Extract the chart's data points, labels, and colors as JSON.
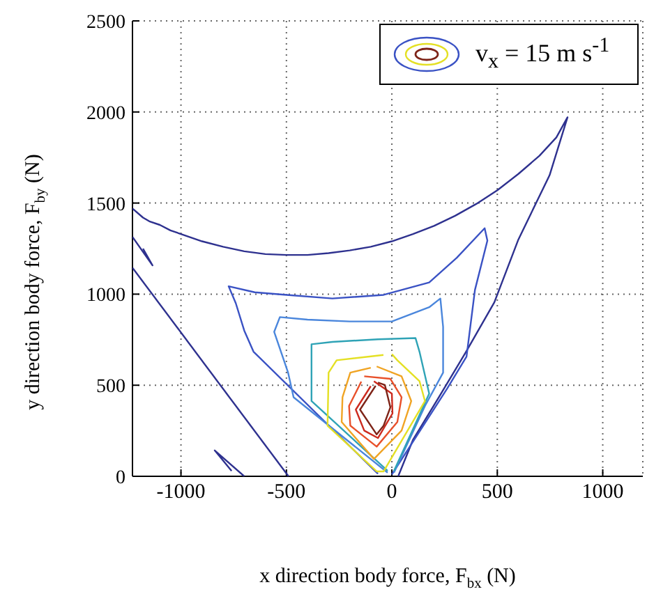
{
  "chart_data": {
    "type": "line",
    "xlabel": "x direction body force, F$_{bx}$ (N)",
    "ylabel": "y direction body force, F$_{by}$ (N)",
    "annotations": [
      "v$_{x}$ = 15 m s$^{-1}$"
    ],
    "xlim": [
      -1230,
      1190
    ],
    "ylim": [
      0,
      2500
    ],
    "xticks": [
      -1000,
      -500,
      0,
      500,
      1000
    ],
    "yticks": [
      0,
      500,
      1000,
      1500,
      2000,
      2500
    ],
    "grid": true,
    "marker": "none",
    "series": [
      {
        "color": "#2e318f",
        "x": [
          -1230,
          -1180,
          -1150,
          -1100,
          -1050,
          -1000,
          -900,
          -800,
          -700,
          -600,
          -500,
          -400,
          -300,
          -200,
          -100,
          0,
          100,
          200,
          300,
          400,
          500,
          600,
          700,
          780,
          833,
          748,
          600,
          486,
          350,
          223,
          100,
          30
        ],
        "values": [
          1470,
          1420,
          1400,
          1380,
          1350,
          1330,
          1290,
          1260,
          1235,
          1220,
          1215,
          1215,
          1225,
          1240,
          1260,
          1290,
          1330,
          1375,
          1430,
          1495,
          1570,
          1660,
          1760,
          1860,
          1971,
          1653,
          1300,
          955,
          680,
          434,
          200,
          0
        ]
      },
      {
        "color": "#2e318f",
        "x": [
          -1230,
          -490
        ],
        "values": [
          1145,
          0
        ]
      },
      {
        "color": "#2e318f",
        "x": [
          -1230,
          -1135,
          -1180
        ],
        "values": [
          1314,
          1158,
          1250
        ]
      },
      {
        "color": "#2e318f",
        "x": [
          -700,
          -840,
          -760
        ],
        "values": [
          0,
          142,
          30
        ]
      },
      {
        "color": "#3a52c4",
        "x": [
          -66,
          -656,
          -700,
          -740,
          -774,
          -650,
          -499,
          -282,
          -39,
          177,
          308,
          440,
          453,
          394,
          354,
          262,
          0
        ],
        "values": [
          14,
          684,
          800,
          950,
          1043,
          1010,
          996,
          976,
          996,
          1064,
          1200,
          1362,
          1294,
          1023,
          657,
          481,
          10
        ]
      },
      {
        "color": "#4a86dc",
        "x": [
          -20,
          -466,
          -492,
          -558,
          -531,
          -400,
          -200,
          0,
          177,
          230,
          243,
          243,
          157,
          10
        ],
        "values": [
          20,
          434,
          569,
          793,
          874,
          860,
          850,
          850,
          928,
          976,
          820,
          569,
          386,
          20
        ]
      },
      {
        "color": "#2fa3b6",
        "x": [
          -20,
          -381,
          -381,
          -282,
          -66,
          112,
          131,
          177,
          10
        ],
        "values": [
          30,
          413,
          725,
          738,
          752,
          759,
          684,
          454,
          30
        ]
      },
      {
        "color": "#e4e024",
        "x": [
          0,
          26,
          131,
          157,
          -39,
          -72,
          -305,
          -300,
          -262,
          -40
        ],
        "values": [
          671,
          637,
          522,
          413,
          27,
          27,
          278,
          569,
          637,
          666
        ]
      },
      {
        "color": "#f0a424",
        "x": [
          -72,
          46,
          92,
          46,
          -85,
          -238,
          -234,
          -197,
          -100
        ],
        "values": [
          603,
          549,
          413,
          251,
          95,
          298,
          434,
          569,
          596
        ]
      },
      {
        "color": "#e8502a",
        "x": [
          -131,
          -7,
          46,
          26,
          -72,
          -197,
          -203,
          -145
        ],
        "values": [
          549,
          535,
          434,
          298,
          163,
          278,
          386,
          520
        ]
      },
      {
        "color": "#cc2a1e",
        "x": [
          -85,
          0,
          3,
          -66,
          -131,
          -171,
          -100
        ],
        "values": [
          522,
          454,
          345,
          210,
          251,
          366,
          495
        ]
      },
      {
        "color": "#7e2418",
        "x": [
          -66,
          -33,
          -7,
          -39,
          -72,
          -151,
          -77
        ],
        "values": [
          515,
          501,
          379,
          278,
          230,
          366,
          497
        ]
      }
    ]
  }
}
